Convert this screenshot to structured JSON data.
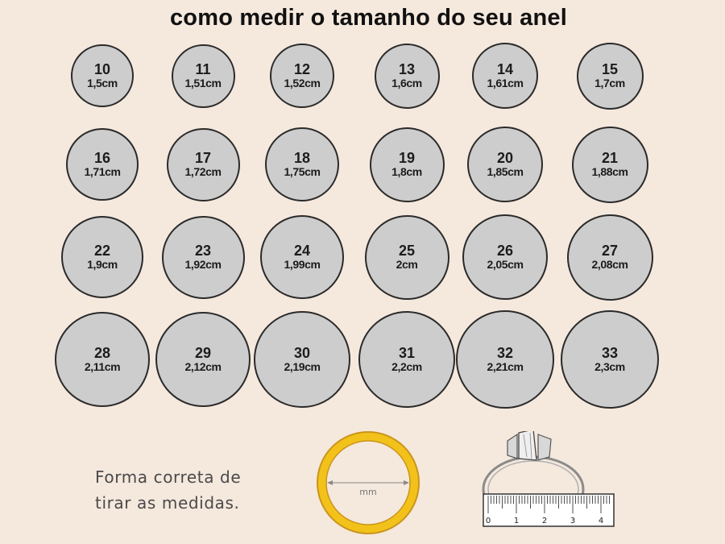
{
  "title": "como medir o tamanho do seu anel",
  "sizes": [
    {
      "num": "10",
      "cm": "1,5cm"
    },
    {
      "num": "11",
      "cm": "1,51cm"
    },
    {
      "num": "12",
      "cm": "1,52cm"
    },
    {
      "num": "13",
      "cm": "1,6cm"
    },
    {
      "num": "14",
      "cm": "1,61cm"
    },
    {
      "num": "15",
      "cm": "1,7cm"
    },
    {
      "num": "16",
      "cm": "1,71cm"
    },
    {
      "num": "17",
      "cm": "1,72cm"
    },
    {
      "num": "18",
      "cm": "1,75cm"
    },
    {
      "num": "19",
      "cm": "1,8cm"
    },
    {
      "num": "20",
      "cm": "1,85cm"
    },
    {
      "num": "21",
      "cm": "1,88cm"
    },
    {
      "num": "22",
      "cm": "1,9cm"
    },
    {
      "num": "23",
      "cm": "1,92cm"
    },
    {
      "num": "24",
      "cm": "1,99cm"
    },
    {
      "num": "25",
      "cm": "2cm"
    },
    {
      "num": "26",
      "cm": "2,05cm"
    },
    {
      "num": "27",
      "cm": "2,08cm"
    },
    {
      "num": "28",
      "cm": "2,11cm"
    },
    {
      "num": "29",
      "cm": "2,12cm"
    },
    {
      "num": "30",
      "cm": "2,19cm"
    },
    {
      "num": "31",
      "cm": "2,2cm"
    },
    {
      "num": "32",
      "cm": "2,21cm"
    },
    {
      "num": "33",
      "cm": "2,3cm"
    }
  ],
  "instructions": {
    "line1": "Forma correta de",
    "line2": "tirar as medidas."
  },
  "illustrations": {
    "gold_ring_label": "mm",
    "ruler_labels": [
      "0",
      "1",
      "2",
      "3",
      "4"
    ],
    "colors": {
      "gold": "#f2c21a",
      "ring_fill": "#cdcdcd",
      "background": "#f5e8dd"
    }
  }
}
